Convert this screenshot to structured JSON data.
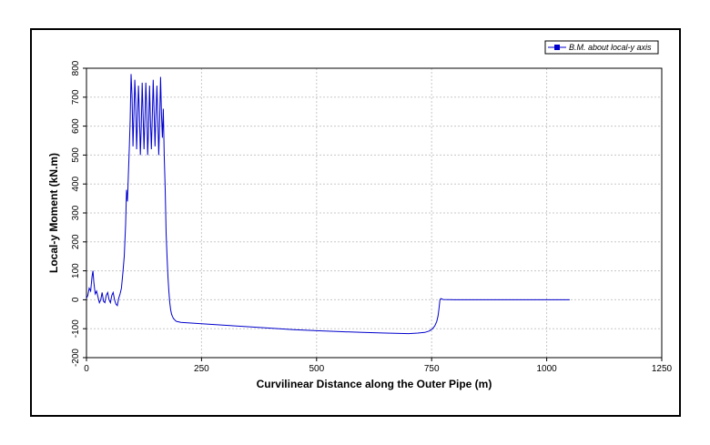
{
  "chart_data": {
    "type": "line",
    "xlabel": "Curvilinear Distance along the Outer Pipe (m)",
    "ylabel": "Local-y Moment (kN.m)",
    "xlim": [
      0,
      1250
    ],
    "ylim": [
      -200,
      800
    ],
    "xticks": [
      0,
      250,
      500,
      750,
      1000,
      1250
    ],
    "yticks": [
      -200,
      -100,
      0,
      100,
      200,
      300,
      400,
      500,
      600,
      700,
      800
    ],
    "grid": true,
    "legend_position": "top-right",
    "series": [
      {
        "name": "B.M. about local-y axis",
        "color": "#0000cc",
        "marker": "square",
        "x": [
          0,
          3,
          6,
          9,
          12,
          14,
          16,
          19,
          22,
          25,
          28,
          31,
          34,
          37,
          40,
          43,
          46,
          49,
          52,
          55,
          58,
          61,
          64,
          67,
          70,
          73,
          76,
          79,
          82,
          85,
          87,
          89,
          91,
          93,
          95,
          97,
          99,
          101,
          103,
          105,
          107,
          109,
          111,
          113,
          115,
          117,
          119,
          121,
          123,
          125,
          127,
          129,
          131,
          133,
          135,
          137,
          139,
          141,
          143,
          145,
          147,
          149,
          151,
          153,
          155,
          157,
          159,
          161,
          163,
          165,
          167,
          169,
          171,
          173,
          175,
          177,
          179,
          181,
          183,
          185,
          187,
          189,
          191,
          193,
          196,
          200,
          205,
          212,
          220,
          250,
          300,
          350,
          400,
          450,
          500,
          550,
          600,
          650,
          700,
          720,
          735,
          745,
          752,
          757,
          761,
          764,
          766,
          768,
          770,
          775,
          800,
          900,
          1000,
          1050
        ],
        "y": [
          5,
          15,
          40,
          30,
          80,
          100,
          60,
          20,
          30,
          10,
          -10,
          0,
          25,
          -5,
          -10,
          15,
          25,
          0,
          -10,
          15,
          25,
          0,
          -15,
          -20,
          5,
          20,
          40,
          90,
          150,
          260,
          380,
          340,
          430,
          520,
          620,
          780,
          700,
          530,
          640,
          760,
          680,
          520,
          620,
          740,
          650,
          500,
          600,
          750,
          640,
          520,
          620,
          750,
          660,
          500,
          600,
          740,
          620,
          520,
          630,
          760,
          650,
          530,
          640,
          740,
          620,
          500,
          620,
          770,
          640,
          560,
          660,
          500,
          380,
          230,
          150,
          80,
          30,
          -10,
          -35,
          -50,
          -58,
          -65,
          -68,
          -72,
          -75,
          -76,
          -78,
          -79,
          -80,
          -83,
          -88,
          -93,
          -98,
          -103,
          -107,
          -110,
          -113,
          -115,
          -117,
          -115,
          -113,
          -108,
          -100,
          -90,
          -75,
          -55,
          -30,
          0,
          4,
          1,
          0,
          0,
          0,
          0
        ]
      }
    ]
  }
}
